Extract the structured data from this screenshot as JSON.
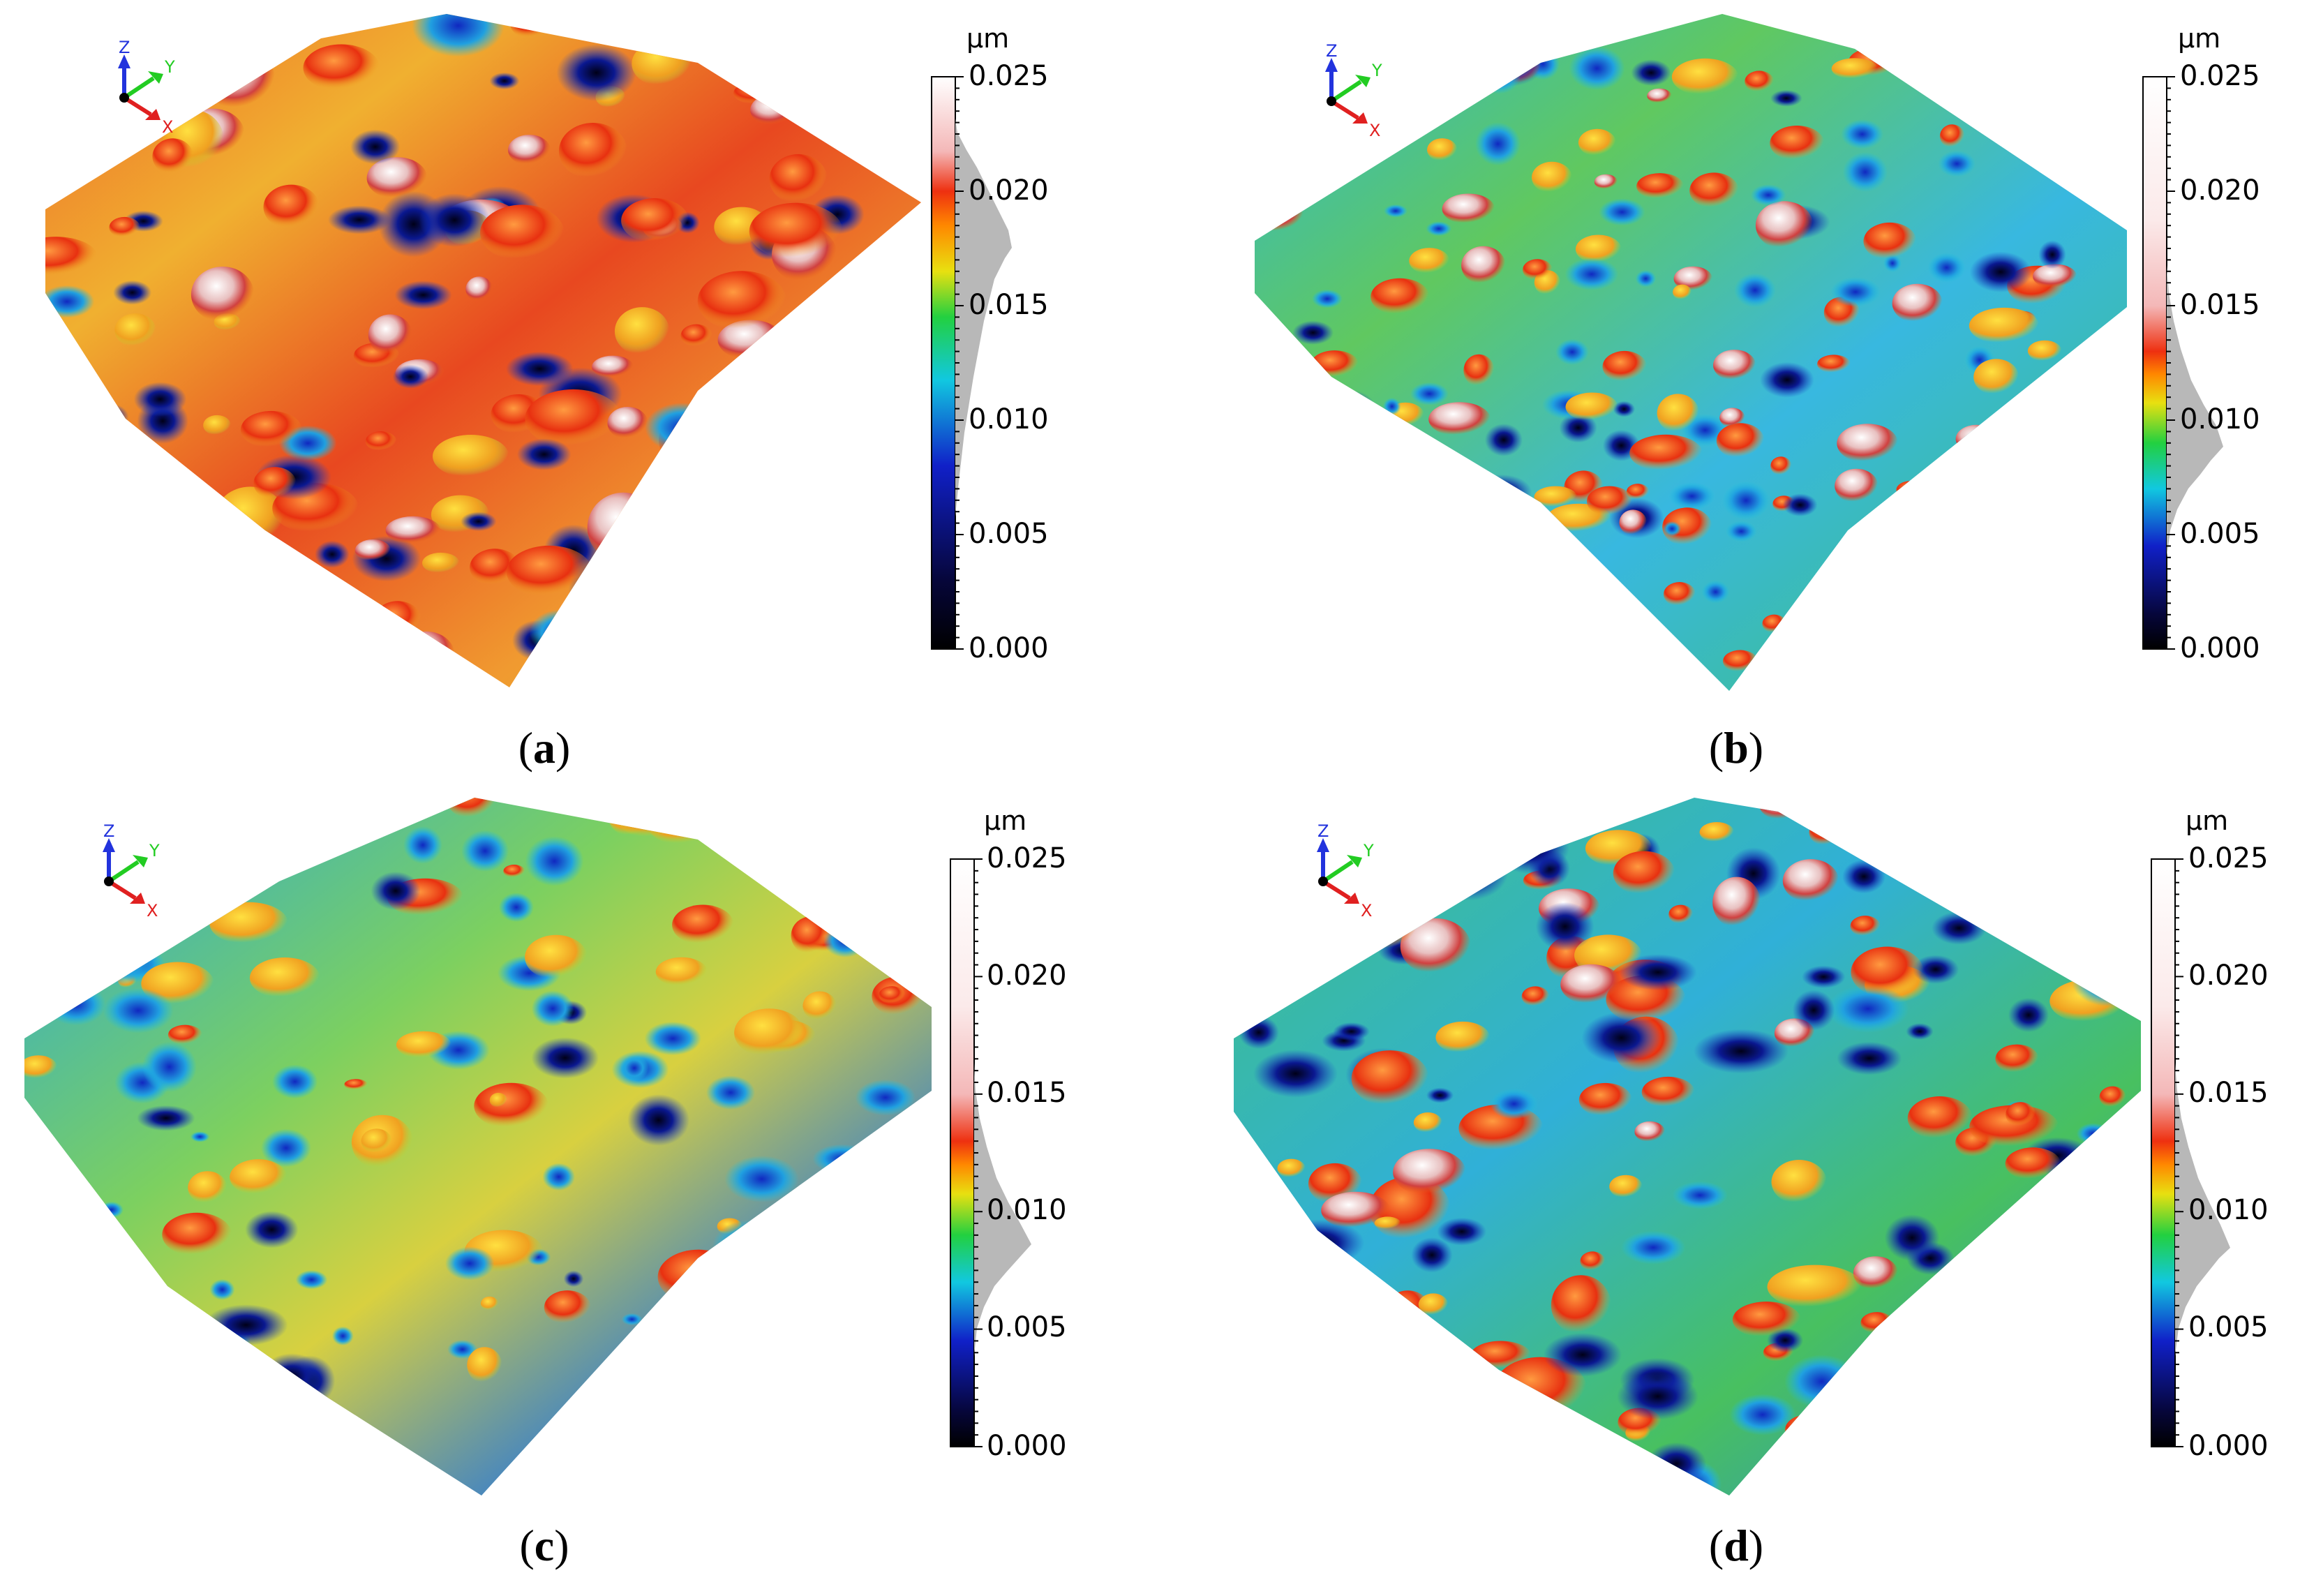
{
  "panels": [
    {
      "id": "a",
      "label_open": "(",
      "label_letter": "a",
      "label_close": ")",
      "unit": "µm",
      "scale_ticks": [
        "0.025",
        "0.020",
        "0.015",
        "0.010",
        "0.005",
        "0.000"
      ],
      "axes": {
        "x": "X",
        "y": "Y",
        "z": "Z"
      },
      "colormap": "height: black-blue-cyan-green-yellow-orange-red-pink-white",
      "histogram_peak_um": 0.017
    },
    {
      "id": "b",
      "label_open": "(",
      "label_letter": "b",
      "label_close": ")",
      "unit": "µm",
      "scale_ticks": [
        "0.025",
        "0.020",
        "0.015",
        "0.010",
        "0.005",
        "0.000"
      ],
      "axes": {
        "x": "X",
        "y": "Y",
        "z": "Z"
      },
      "colormap": "height: black-blue-cyan-green-yellow-orange-red-pink-white",
      "histogram_peak_um": 0.009
    },
    {
      "id": "c",
      "label_open": "(",
      "label_letter": "c",
      "label_close": ")",
      "unit": "µm",
      "scale_ticks": [
        "0.025",
        "0.020",
        "0.015",
        "0.010",
        "0.005",
        "0.000"
      ],
      "axes": {
        "x": "X",
        "y": "Y",
        "z": "Z"
      },
      "colormap": "height: black-blue-cyan-green-yellow-orange-red-pink-white",
      "histogram_peak_um": 0.009
    },
    {
      "id": "d",
      "label_open": "(",
      "label_letter": "d",
      "label_close": ")",
      "unit": "µm",
      "scale_ticks": [
        "0.025",
        "0.020",
        "0.015",
        "0.010",
        "0.005",
        "0.000"
      ],
      "axes": {
        "x": "X",
        "y": "Y",
        "z": "Z"
      },
      "colormap": "height: black-blue-cyan-green-yellow-orange-red-pink-white",
      "histogram_peak_um": 0.009
    }
  ],
  "colors": {
    "axis_x": "#e02020",
    "axis_y": "#22cc22",
    "axis_z": "#2233dd",
    "histogram": "#b8b8b8"
  }
}
